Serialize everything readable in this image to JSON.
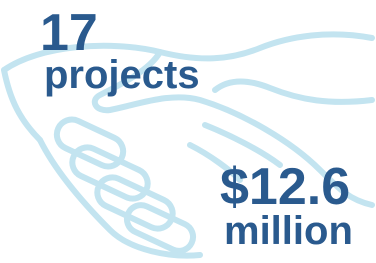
{
  "stats": [
    {
      "value": "17",
      "label": "projects"
    },
    {
      "value": "$12.6",
      "label": "million"
    }
  ]
}
